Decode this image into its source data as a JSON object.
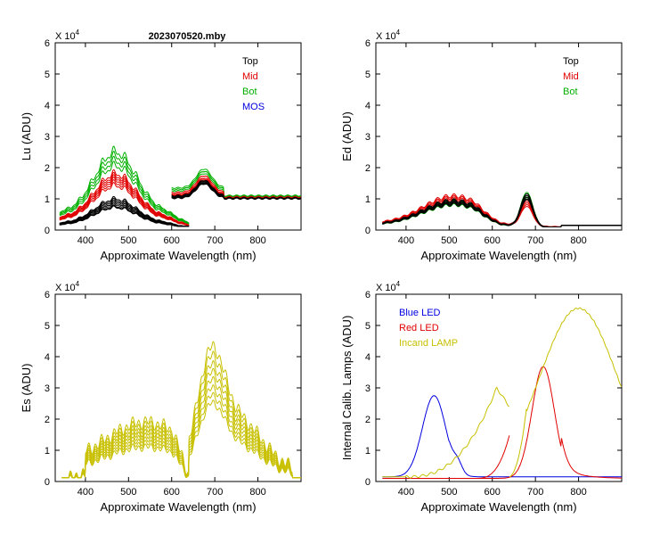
{
  "figure": {
    "title": "2023070520.mby"
  },
  "colors": {
    "black": "#000000",
    "red": "#e00000",
    "green": "#00b000",
    "blue": "#0000e0",
    "olive": "#c8c000"
  },
  "chart_data": [
    {
      "id": "lu",
      "type": "line",
      "title": "2023070520.mby",
      "ylabel": "Lu (ADU)",
      "xlabel": "Approximate Wavelength (nm)",
      "xlim": [
        330,
        900
      ],
      "ylim": [
        0,
        6
      ],
      "y_multiplier": "X 10^4",
      "xticks": [
        400,
        500,
        600,
        700,
        800
      ],
      "yticks": [
        0,
        1,
        2,
        3,
        4,
        5,
        6
      ],
      "legend": [
        {
          "label": "Top",
          "color": "#000000"
        },
        {
          "label": "Mid",
          "color": "#e00000"
        },
        {
          "label": "Bot",
          "color": "#00b000"
        },
        {
          "label": "MOS",
          "color": "#0000e0"
        }
      ],
      "series": [
        {
          "name": "Bot",
          "color": "#00b000",
          "shape": "lu_main",
          "scales": [
            2.5,
            2.35,
            2.2,
            2.05
          ],
          "tail": [
            1.3,
            1.25,
            1.35,
            1.3
          ]
        },
        {
          "name": "Mid",
          "color": "#e00000",
          "shape": "lu_main",
          "scales": [
            1.8,
            1.72,
            1.65,
            1.58,
            1.5,
            1.42
          ],
          "tail": [
            1.2,
            1.15,
            1.2,
            1.1,
            1.15,
            1.12
          ]
        },
        {
          "name": "Top",
          "color": "#000000",
          "shape": "lu_main",
          "scales": [
            1.0,
            0.95,
            0.9,
            0.85,
            0.8,
            0.75,
            0.72
          ],
          "tail": [
            1.1,
            1.08,
            1.06,
            1.05,
            1.04,
            1.03,
            1.02
          ]
        }
      ]
    },
    {
      "id": "ed",
      "type": "line",
      "ylabel": "Ed (ADU)",
      "xlabel": "Approximate Wavelength (nm)",
      "xlim": [
        330,
        900
      ],
      "ylim": [
        0,
        6
      ],
      "y_multiplier": "X 10^4",
      "xticks": [
        400,
        500,
        600,
        700,
        800
      ],
      "yticks": [
        0,
        1,
        2,
        3,
        4,
        5,
        6
      ],
      "legend": [
        {
          "label": "Top",
          "color": "#000000"
        },
        {
          "label": "Mid",
          "color": "#e00000"
        },
        {
          "label": "Bot",
          "color": "#00b000"
        }
      ],
      "series": [
        {
          "name": "Mid",
          "color": "#e00000",
          "shape": "ed_main",
          "scales": [
            1.1,
            1.05,
            1.0,
            0.95,
            0.9
          ],
          "peak": [
            0.85,
            0.8,
            0.75,
            0.7,
            0.65
          ]
        },
        {
          "name": "Bot",
          "color": "#00b000",
          "shape": "ed_main",
          "scales": [
            0.9,
            0.85,
            0.8
          ],
          "peak": [
            1.1,
            1.0,
            0.95
          ]
        },
        {
          "name": "Top",
          "color": "#000000",
          "shape": "ed_main",
          "scales": [
            0.95,
            0.92,
            0.88,
            0.85,
            0.82
          ],
          "peak": [
            1.05,
            1.0,
            0.95,
            0.9,
            0.88
          ]
        }
      ]
    },
    {
      "id": "es",
      "type": "line",
      "ylabel": "Es (ADU)",
      "xlabel": "Approximate Wavelength (nm)",
      "xlim": [
        330,
        900
      ],
      "ylim": [
        0,
        6
      ],
      "y_multiplier": "X 10^4",
      "xticks": [
        400,
        500,
        600,
        700,
        800
      ],
      "yticks": [
        0,
        1,
        2,
        3,
        4,
        5,
        6
      ],
      "legend": [],
      "series": [
        {
          "name": "Es",
          "color": "#c8c000",
          "shape": "es_main",
          "scales": [
            2.2,
            2.05,
            1.9,
            1.78,
            1.65,
            1.52,
            1.4,
            1.28
          ]
        }
      ]
    },
    {
      "id": "lamps",
      "type": "line",
      "ylabel": "Internal Calib. Lamps (ADU)",
      "xlabel": "Approximate Wavelength (nm)",
      "xlim": [
        330,
        900
      ],
      "ylim": [
        0,
        6
      ],
      "y_multiplier": "X 10^4",
      "xticks": [
        400,
        500,
        600,
        700,
        800
      ],
      "yticks": [
        0,
        1,
        2,
        3,
        4,
        5,
        6
      ],
      "legend": [
        {
          "label": "Blue LED",
          "color": "#0000e0"
        },
        {
          "label": "Red LED",
          "color": "#e00000"
        },
        {
          "label": "Incand LAMP",
          "color": "#c8c000"
        }
      ],
      "series": [
        {
          "name": "Blue LED",
          "color": "#0000e0",
          "shape": "blue_led",
          "peak_nm": 465,
          "peak_value": 2.75
        },
        {
          "name": "Red LED",
          "color": "#e00000",
          "shape": "red_led",
          "peak_nm": 718,
          "peak_value": 3.68
        },
        {
          "name": "Incand LAMP",
          "color": "#c8c000",
          "shape": "incand",
          "peak_nm": 800,
          "peak_value": 5.55
        }
      ]
    }
  ]
}
